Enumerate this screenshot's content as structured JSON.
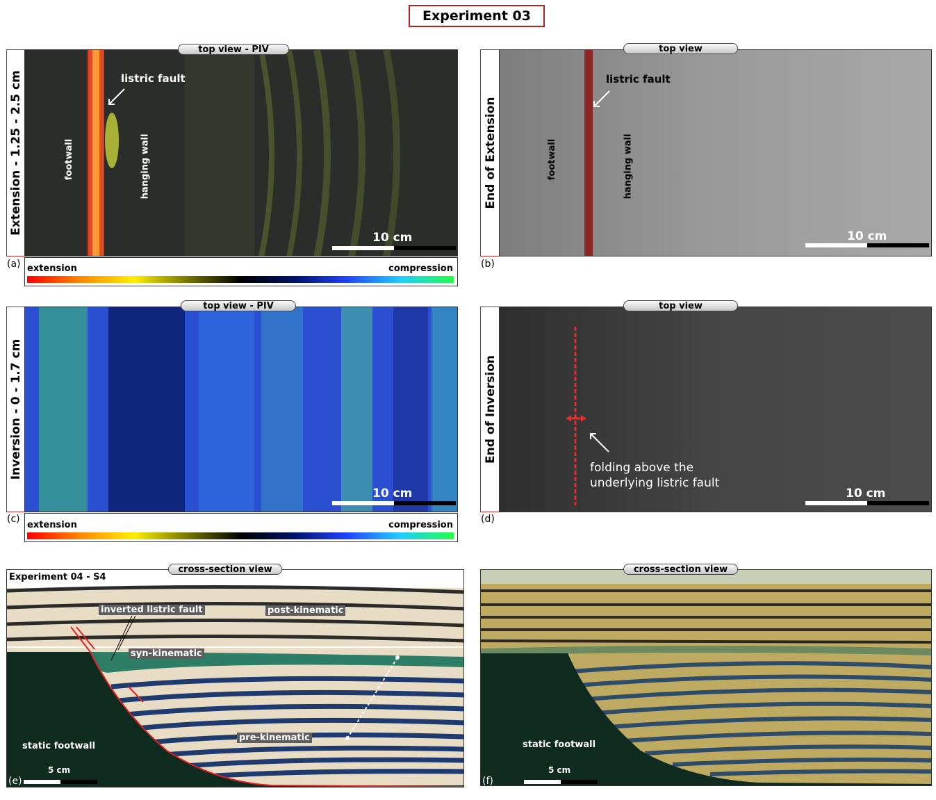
{
  "figure_title": "Experiment 03",
  "panels": {
    "a": {
      "letter": "(a)",
      "side_label": "Extension - 1.25 - 2.5 cm",
      "tab": "top view - PIV",
      "fault_label": "listric fault",
      "footwall": "footwall",
      "hanging_wall": "hanging wall",
      "scale": "10 cm",
      "colorbar_left": "extension",
      "colorbar_right": "compression"
    },
    "b": {
      "letter": "(b)",
      "side_label": "End of Extension",
      "tab": "top view",
      "fault_label": "listric fault",
      "footwall": "footwall",
      "hanging_wall": "hanging wall",
      "scale": "10 cm"
    },
    "c": {
      "letter": "(c)",
      "side_label": "Inversion - 0 - 1.7 cm",
      "tab": "top view - PIV",
      "scale": "10 cm",
      "colorbar_left": "extension",
      "colorbar_right": "compression"
    },
    "d": {
      "letter": "(d)",
      "side_label": "End of Inversion",
      "tab": "top view",
      "annotation_line1": "folding above the",
      "annotation_line2": "underlying listric fault",
      "scale": "10 cm"
    },
    "e": {
      "letter": "(e)",
      "tab": "cross-section view",
      "experiment_label": "Experiment 04 - S4",
      "inverted_fault": "inverted listric fault",
      "post_kinematic": "post-kinematic",
      "syn_kinematic": "syn-kinematic",
      "pre_kinematic": "pre-kinematic",
      "static_footwall": "static footwall",
      "scale": "5 cm"
    },
    "f": {
      "letter": "(f)",
      "tab": "cross-section view",
      "static_footwall": "static footwall",
      "scale": "5 cm"
    }
  },
  "colors": {
    "frame_red": "#b22222",
    "footwall_dark": "#0f2a1e",
    "sand_beige": "#e8dcc4",
    "blue_layer": "#1f3a6e",
    "syn_green": "#2e7d66"
  }
}
